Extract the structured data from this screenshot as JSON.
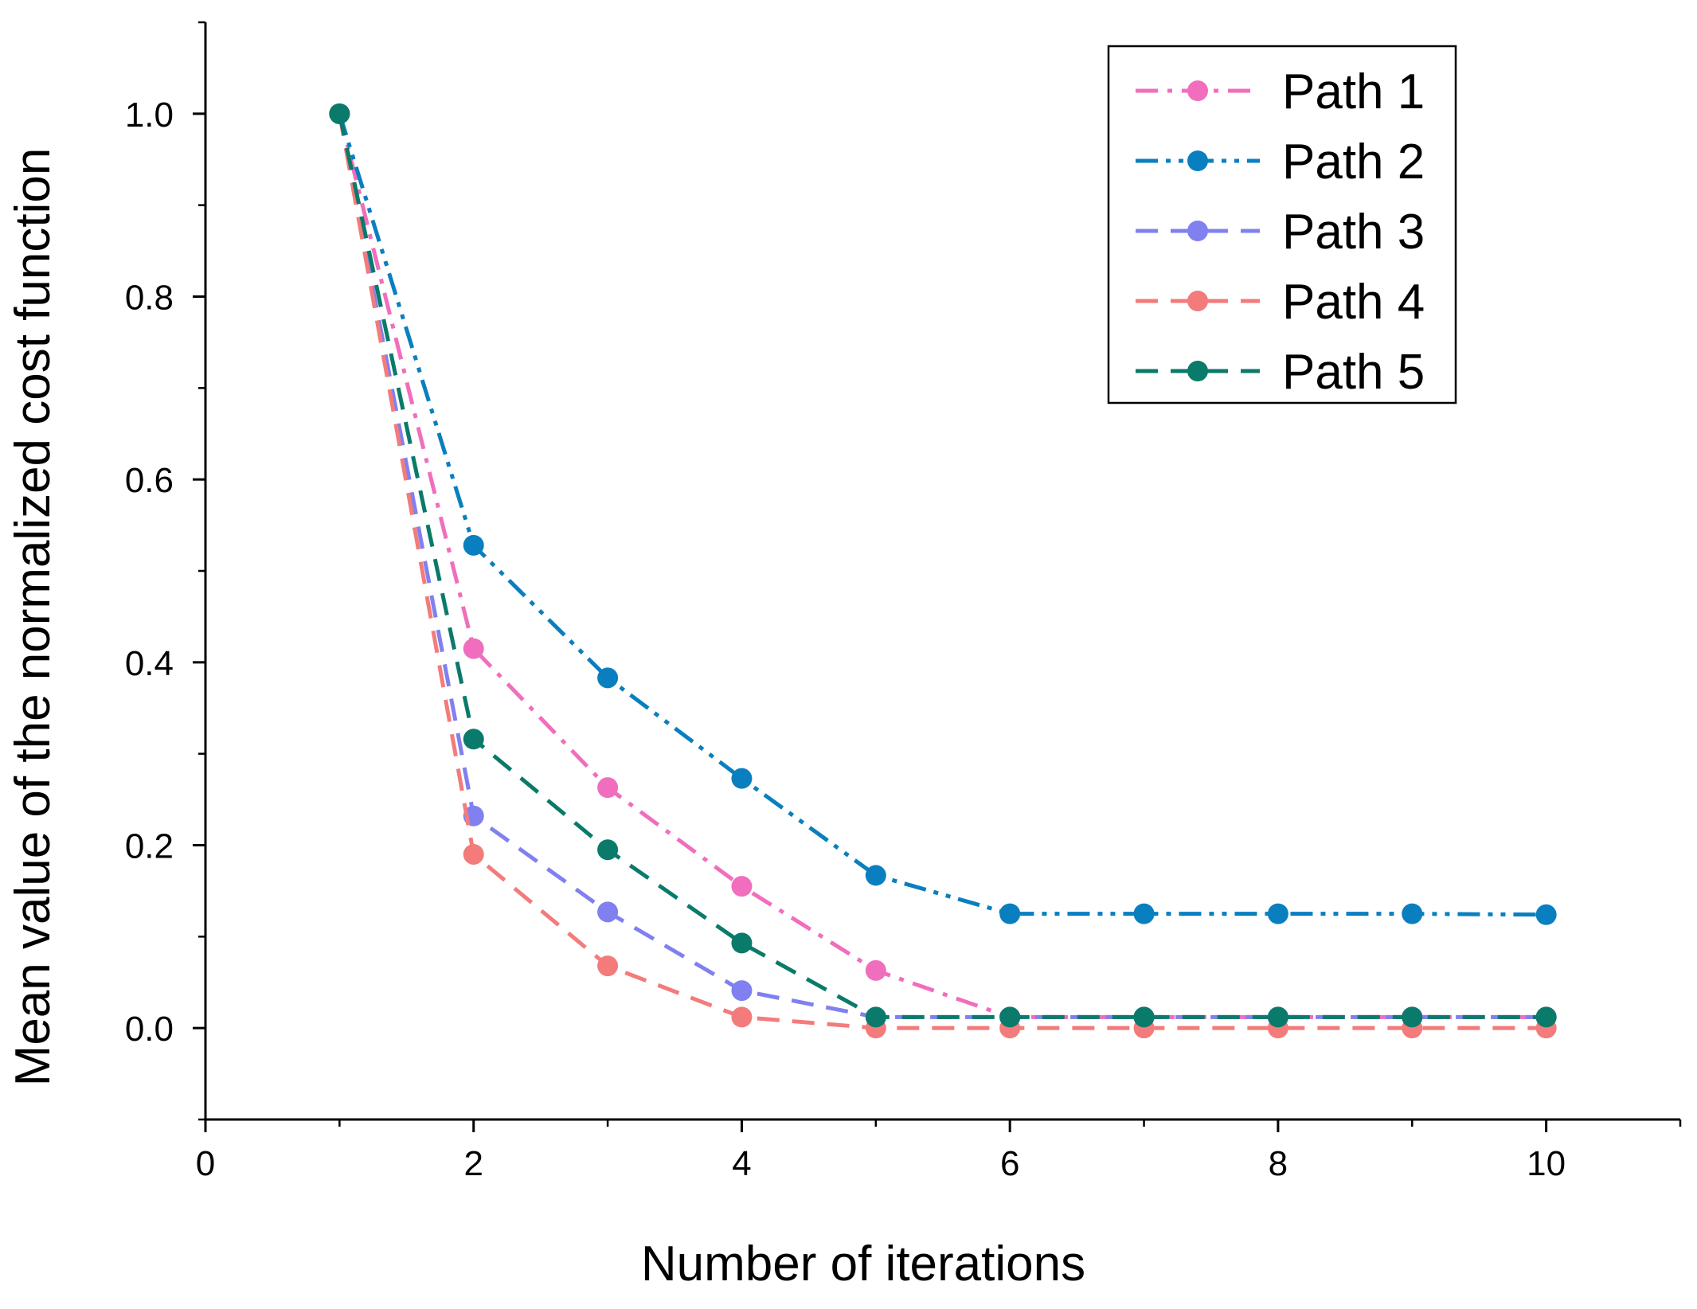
{
  "chart_data": {
    "type": "line",
    "title": "",
    "xlabel": "Number of iterations",
    "ylabel": "Mean value of the normalized cost function",
    "xlim": [
      0,
      11
    ],
    "ylim": [
      -0.1,
      1.1
    ],
    "xticks": [
      "0",
      "2",
      "4",
      "6",
      "8",
      "10"
    ],
    "xtick_values": [
      0,
      2,
      4,
      6,
      8,
      10
    ],
    "yticks": [
      "0.0",
      "0.2",
      "0.4",
      "0.6",
      "0.8",
      "1.0"
    ],
    "ytick_values": [
      0,
      0.2,
      0.4,
      0.6,
      0.8,
      1.0
    ],
    "grid": false,
    "legend_position": "top-right",
    "x": [
      1,
      2,
      3,
      4,
      5,
      6,
      7,
      8,
      9,
      10
    ],
    "series": [
      {
        "name": "Path 1",
        "color": "#f06ebd",
        "dash": "dash-dot",
        "values": [
          1.0,
          0.415,
          0.263,
          0.155,
          0.063,
          0.012,
          0.012,
          0.012,
          0.012,
          0.012
        ]
      },
      {
        "name": "Path 2",
        "color": "#0a7fbf",
        "dash": "dash-dot-dot",
        "values": [
          1.0,
          0.528,
          0.383,
          0.273,
          0.167,
          0.125,
          0.125,
          0.125,
          0.125,
          0.124
        ]
      },
      {
        "name": "Path 3",
        "color": "#8080f0",
        "dash": "dash",
        "values": [
          1.0,
          0.232,
          0.127,
          0.041,
          0.012,
          0.012,
          0.012,
          0.012,
          0.012,
          0.012
        ]
      },
      {
        "name": "Path 4",
        "color": "#f47b7b",
        "dash": "dash",
        "values": [
          1.0,
          0.19,
          0.068,
          0.012,
          0.0,
          0.0,
          0.0,
          0.0,
          0.0,
          0.0
        ]
      },
      {
        "name": "Path 5",
        "color": "#0a7a6a",
        "dash": "dash",
        "values": [
          1.0,
          0.316,
          0.195,
          0.093,
          0.012,
          0.012,
          0.012,
          0.012,
          0.012,
          0.012
        ]
      }
    ]
  }
}
